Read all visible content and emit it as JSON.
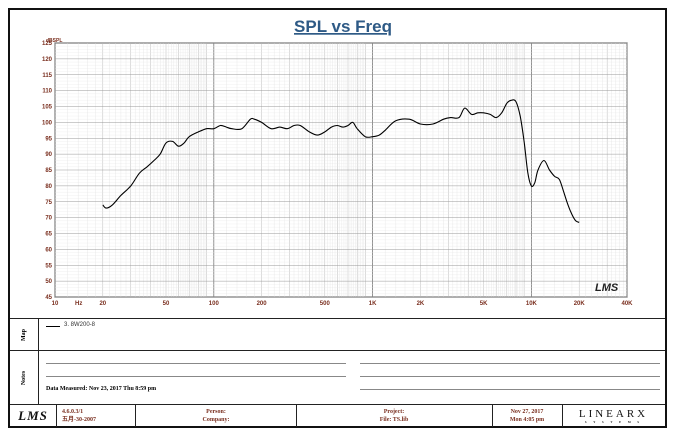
{
  "chart_data": {
    "type": "line",
    "title": "SPL vs Freq",
    "ylabel": "dBSPL",
    "x_unit": "Hz",
    "x_scale": "log",
    "xlim": [
      10,
      40000
    ],
    "ylim": [
      45,
      125
    ],
    "grid": true,
    "x_tick_labels": [
      {
        "value": 10,
        "label": "10"
      },
      {
        "value": 20,
        "label": "20"
      },
      {
        "value": 50,
        "label": "50"
      },
      {
        "value": 100,
        "label": "100"
      },
      {
        "value": 200,
        "label": "200"
      },
      {
        "value": 500,
        "label": "500"
      },
      {
        "value": 1000,
        "label": "1K"
      },
      {
        "value": 2000,
        "label": "2K"
      },
      {
        "value": 5000,
        "label": "5K"
      },
      {
        "value": 10000,
        "label": "10K"
      },
      {
        "value": 20000,
        "label": "20K"
      },
      {
        "value": 40000,
        "label": "40K"
      }
    ],
    "y_ticks": [
      45,
      50,
      55,
      60,
      65,
      70,
      75,
      80,
      85,
      90,
      95,
      100,
      105,
      110,
      115,
      120,
      125
    ],
    "series": [
      {
        "name": "3. 8W200-8",
        "color": "#000000",
        "x": [
          20,
          21,
          23,
          26,
          30,
          34,
          38,
          42,
          46,
          50,
          55,
          60,
          65,
          70,
          80,
          90,
          100,
          110,
          120,
          130,
          150,
          170,
          180,
          200,
          230,
          260,
          290,
          320,
          350,
          400,
          450,
          500,
          550,
          600,
          650,
          700,
          750,
          800,
          900,
          1000,
          1100,
          1200,
          1400,
          1700,
          2000,
          2400,
          2800,
          3100,
          3500,
          3800,
          4200,
          4600,
          5000,
          5500,
          6000,
          6500,
          7000,
          7500,
          8000,
          8500,
          9000,
          9500,
          10000,
          10500,
          11000,
          12000,
          13000,
          14000,
          15000,
          16000,
          17000,
          18000,
          19000,
          20000
        ],
        "y": [
          74,
          73,
          74,
          77,
          80,
          84,
          86,
          88,
          90,
          93.5,
          94,
          92.5,
          93.5,
          95.5,
          97,
          98,
          98,
          99,
          98.5,
          98,
          98,
          101,
          101,
          100,
          98,
          98.5,
          98,
          99,
          99,
          97,
          96,
          97,
          98.5,
          99,
          98.5,
          99,
          100,
          98,
          95.5,
          95.5,
          96,
          97.5,
          100.5,
          101,
          99.5,
          99.5,
          101,
          101.5,
          101.5,
          104.5,
          102.5,
          103,
          103,
          102.5,
          101.5,
          103,
          106,
          107,
          106.5,
          102,
          94,
          84,
          80,
          81,
          85,
          88,
          85,
          83,
          82,
          78,
          74,
          71,
          69,
          68.5
        ]
      }
    ]
  },
  "panel": {
    "map_label": "Map",
    "notes_label": "Notes",
    "legend_label": "3. 8W200-8",
    "data_measured": "Data Measured: Nov 23, 2017   Thu   8:59 pm",
    "watermark": "LMS"
  },
  "footer": {
    "logo": "LMS",
    "version": "4.6.0.3/1",
    "version_date": "五月-30-2007",
    "person_label": "Person:",
    "company_label": "Company:",
    "project_label": "Project:",
    "file_label": "File: TS.lib",
    "date_line1": "Nov 27, 2017",
    "date_line2": "Mon  4:05 pm",
    "brand": "LINEARX",
    "brand_sub": "S Y S T E M S"
  }
}
